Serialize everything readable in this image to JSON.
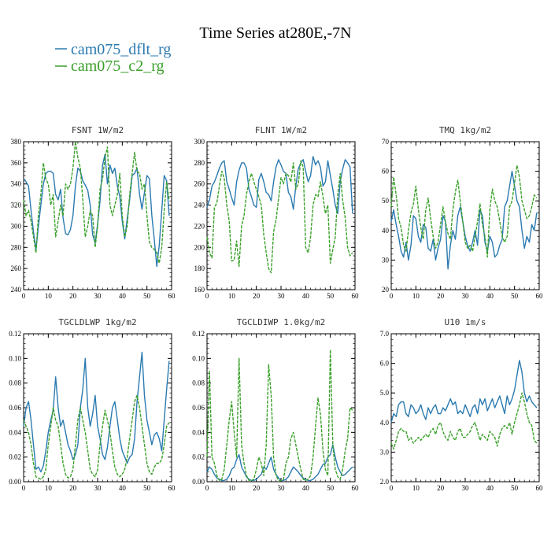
{
  "figure": {
    "title": "Time Series at280E,-7N",
    "legend": [
      {
        "label": "cam075_dflt_rg",
        "color": "#2a7ab0"
      },
      {
        "label": "cam075_c2_rg",
        "color": "#3aa02a"
      }
    ]
  },
  "chart_data": [
    {
      "type": "line",
      "title": "FSNT   1W/m2",
      "xlim": [
        0,
        60
      ],
      "ylim": [
        240,
        380
      ],
      "xticks": [
        0,
        10,
        20,
        30,
        40,
        50,
        60
      ],
      "yticks": [
        240,
        260,
        280,
        300,
        320,
        340,
        360,
        380
      ],
      "xtick_labels": [
        "0",
        "10",
        "20",
        "30",
        "40",
        "50",
        "60"
      ],
      "ytick_labels": [
        "240",
        "260",
        "280",
        "300",
        "320",
        "340",
        "360",
        "380"
      ],
      "series": [
        {
          "name": "cam075_dflt_rg",
          "color": "#2a7ab0",
          "values": [
            345,
            342,
            338,
            315,
            295,
            278,
            300,
            320,
            340,
            350,
            352,
            352,
            350,
            330,
            325,
            335,
            308,
            293,
            292,
            297,
            310,
            338,
            355,
            352,
            343,
            339,
            334,
            320,
            292,
            284,
            302,
            324,
            358,
            368,
            340,
            358,
            350,
            355,
            338,
            328,
            305,
            288,
            307,
            325,
            348,
            350,
            355,
            330,
            316,
            332,
            348,
            345,
            310,
            287,
            262,
            282,
            315,
            348,
            343,
            310
          ]
        },
        {
          "name": "cam075_c2_rg",
          "color": "#3aa02a",
          "values": [
            325,
            310,
            315,
            305,
            290,
            275,
            310,
            330,
            360,
            345,
            340,
            320,
            330,
            290,
            305,
            320,
            310,
            340,
            335,
            340,
            355,
            380,
            365,
            355,
            325,
            290,
            300,
            315,
            310,
            280,
            300,
            335,
            345,
            365,
            375,
            320,
            310,
            320,
            330,
            350,
            310,
            290,
            300,
            330,
            350,
            370,
            352,
            350,
            335,
            340,
            310,
            285,
            280,
            278,
            275,
            265,
            280,
            315,
            342,
            325
          ]
        }
      ]
    },
    {
      "type": "line",
      "title": "FLNT   1W/m2",
      "xlim": [
        0,
        60
      ],
      "ylim": [
        160,
        300
      ],
      "xticks": [
        0,
        10,
        20,
        30,
        40,
        50,
        60
      ],
      "yticks": [
        160,
        180,
        200,
        220,
        240,
        260,
        280,
        300
      ],
      "xtick_labels": [
        "0",
        "10",
        "20",
        "30",
        "40",
        "50",
        "60"
      ],
      "ytick_labels": [
        "160",
        "180",
        "200",
        "220",
        "240",
        "260",
        "280",
        "300"
      ],
      "series": [
        {
          "name": "cam075_dflt_rg",
          "color": "#2a7ab0",
          "values": [
            238,
            245,
            258,
            262,
            268,
            275,
            280,
            282,
            262,
            255,
            247,
            240,
            262,
            273,
            280,
            280,
            275,
            255,
            248,
            240,
            238,
            264,
            270,
            262,
            252,
            250,
            244,
            262,
            276,
            283,
            278,
            272,
            270,
            252,
            248,
            236,
            258,
            274,
            280,
            283,
            272,
            262,
            268,
            286,
            278,
            282,
            276,
            258,
            262,
            282,
            268,
            255,
            240,
            232,
            262,
            274,
            283,
            280,
            276,
            232
          ]
        },
        {
          "name": "cam075_c2_rg",
          "color": "#3aa02a",
          "values": [
            210,
            195,
            190,
            238,
            242,
            258,
            272,
            265,
            240,
            225,
            187,
            188,
            206,
            182,
            220,
            230,
            250,
            262,
            270,
            262,
            255,
            248,
            240,
            212,
            195,
            180,
            176,
            215,
            226,
            246,
            266,
            260,
            270,
            268,
            262,
            280,
            255,
            260,
            282,
            276,
            200,
            195,
            210,
            240,
            250,
            248,
            262,
            248,
            232,
            240,
            185,
            198,
            210,
            250,
            270,
            245,
            228,
            200,
            192,
            195
          ]
        }
      ]
    },
    {
      "type": "line",
      "title": "TMQ   1kg/m2",
      "xlim": [
        0,
        60
      ],
      "ylim": [
        20,
        70
      ],
      "xticks": [
        0,
        10,
        20,
        30,
        40,
        50,
        60
      ],
      "yticks": [
        20,
        30,
        40,
        50,
        60,
        70
      ],
      "xtick_labels": [
        "0",
        "10",
        "20",
        "30",
        "40",
        "50",
        "60"
      ],
      "ytick_labels": [
        "20",
        "30",
        "40",
        "50",
        "60",
        "70"
      ],
      "series": [
        {
          "name": "cam075_dflt_rg",
          "color": "#2a7ab0",
          "values": [
            43,
            47,
            42,
            38,
            33,
            31,
            36,
            30,
            35,
            45,
            44,
            38,
            36,
            42,
            41,
            34,
            33,
            37,
            30,
            34,
            37,
            45,
            43,
            27,
            35,
            40,
            37,
            45,
            48,
            43,
            38,
            35,
            33,
            36,
            40,
            35,
            47,
            45,
            36,
            33,
            38,
            36,
            31,
            32,
            35,
            37,
            48,
            50,
            55,
            60,
            55,
            50,
            48,
            40,
            34,
            38,
            36,
            42,
            40,
            46
          ]
        },
        {
          "name": "cam075_c2_rg",
          "color": "#3aa02a",
          "values": [
            48,
            58,
            52,
            44,
            41,
            35,
            33,
            40,
            46,
            49,
            55,
            47,
            41,
            37,
            47,
            51,
            44,
            38,
            34,
            36,
            42,
            48,
            43,
            39,
            37,
            47,
            53,
            57,
            50,
            43,
            36,
            34,
            35,
            33,
            38,
            43,
            49,
            42,
            38,
            31,
            47,
            54,
            50,
            48,
            43,
            38,
            36,
            38,
            48,
            50,
            56,
            62,
            58,
            50,
            47,
            44,
            45,
            48,
            52,
            51
          ]
        }
      ]
    },
    {
      "type": "line",
      "title": "TGCLDLWP   1kg/m2",
      "xlim": [
        0,
        60
      ],
      "ylim": [
        0,
        0.12
      ],
      "xticks": [
        0,
        10,
        20,
        30,
        40,
        50,
        60
      ],
      "yticks": [
        0,
        0.02,
        0.04,
        0.06,
        0.08,
        0.1,
        0.12
      ],
      "xtick_labels": [
        "0",
        "10",
        "20",
        "30",
        "40",
        "50",
        "60"
      ],
      "ytick_labels": [
        "0.00",
        "0.02",
        "0.04",
        "0.06",
        "0.08",
        "0.10",
        "0.12"
      ],
      "series": [
        {
          "name": "cam075_dflt_rg",
          "color": "#2a7ab0",
          "values": [
            0.045,
            0.06,
            0.065,
            0.05,
            0.03,
            0.01,
            0.012,
            0.008,
            0.013,
            0.025,
            0.04,
            0.05,
            0.058,
            0.085,
            0.06,
            0.045,
            0.05,
            0.04,
            0.03,
            0.025,
            0.018,
            0.022,
            0.03,
            0.06,
            0.075,
            0.1,
            0.06,
            0.045,
            0.055,
            0.07,
            0.045,
            0.035,
            0.022,
            0.018,
            0.028,
            0.045,
            0.06,
            0.065,
            0.05,
            0.035,
            0.025,
            0.02,
            0.015,
            0.02,
            0.022,
            0.035,
            0.065,
            0.085,
            0.105,
            0.07,
            0.05,
            0.04,
            0.03,
            0.038,
            0.04,
            0.035,
            0.025,
            0.05,
            0.075,
            0.098
          ]
        },
        {
          "name": "cam075_c2_rg",
          "color": "#3aa02a",
          "values": [
            0.05,
            0.045,
            0.04,
            0.03,
            0.015,
            0.004,
            0.003,
            0.002,
            0.004,
            0.01,
            0.03,
            0.045,
            0.06,
            0.05,
            0.045,
            0.03,
            0.015,
            0.006,
            0.003,
            0.004,
            0.01,
            0.03,
            0.05,
            0.06,
            0.05,
            0.04,
            0.025,
            0.01,
            0.006,
            0.004,
            0.01,
            0.03,
            0.045,
            0.058,
            0.05,
            0.04,
            0.025,
            0.012,
            0.006,
            0.004,
            0.006,
            0.01,
            0.02,
            0.035,
            0.05,
            0.065,
            0.07,
            0.06,
            0.045,
            0.03,
            0.015,
            0.008,
            0.006,
            0.012,
            0.015,
            0.015,
            0.018,
            0.03,
            0.045,
            0.048
          ]
        }
      ]
    },
    {
      "type": "line",
      "title": "TGCLDIWP   1.0kg/m2",
      "xlim": [
        0,
        60
      ],
      "ylim": [
        0,
        0.12
      ],
      "xticks": [
        0,
        10,
        20,
        30,
        40,
        50,
        60
      ],
      "yticks": [
        0,
        0.02,
        0.04,
        0.06,
        0.08,
        0.1,
        0.12
      ],
      "xtick_labels": [
        "0",
        "10",
        "20",
        "30",
        "40",
        "50",
        "60"
      ],
      "ytick_labels": [
        "0.00",
        "0.02",
        "0.04",
        "0.06",
        "0.08",
        "0.10",
        "0.12"
      ],
      "series": [
        {
          "name": "cam075_dflt_rg",
          "color": "#2a7ab0",
          "values": [
            0.008,
            0.012,
            0.01,
            0.006,
            0.003,
            0.002,
            0.001,
            0.001,
            0.002,
            0.005,
            0.01,
            0.012,
            0.018,
            0.022,
            0.012,
            0.008,
            0.004,
            0.002,
            0.001,
            0.001,
            0.002,
            0.004,
            0.006,
            0.012,
            0.01,
            0.015,
            0.02,
            0.01,
            0.006,
            0.003,
            0.001,
            0.001,
            0.002,
            0.004,
            0.008,
            0.012,
            0.01,
            0.008,
            0.005,
            0.003,
            0.002,
            0.001,
            0.001,
            0.002,
            0.004,
            0.006,
            0.01,
            0.014,
            0.015,
            0.02,
            0.022,
            0.03,
            0.02,
            0.012,
            0.008,
            0.005,
            0.006,
            0.008,
            0.01,
            0.012
          ]
        },
        {
          "name": "cam075_c2_rg",
          "color": "#3aa02a",
          "values": [
            0.02,
            0.09,
            0.02,
            0.015,
            0.005,
            0.001,
            0.002,
            0.01,
            0.03,
            0.05,
            0.065,
            0.04,
            0.02,
            0.1,
            0.03,
            0.015,
            0.005,
            0.001,
            0.001,
            0.002,
            0.01,
            0.02,
            0.015,
            0.005,
            0.03,
            0.095,
            0.07,
            0.02,
            0.005,
            0.001,
            0.001,
            0.002,
            0.015,
            0.02,
            0.035,
            0.04,
            0.03,
            0.02,
            0.01,
            0.002,
            0.001,
            0.002,
            0.005,
            0.02,
            0.045,
            0.068,
            0.055,
            0.025,
            0.01,
            0.005,
            0.107,
            0.03,
            0.01,
            0.004,
            0.002,
            0.01,
            0.025,
            0.035,
            0.06,
            0.058
          ]
        }
      ]
    },
    {
      "type": "line",
      "title": "U10   1m/s",
      "xlim": [
        0,
        60
      ],
      "ylim": [
        2,
        7
      ],
      "xticks": [
        0,
        10,
        20,
        30,
        40,
        50,
        60
      ],
      "yticks": [
        2,
        3,
        4,
        5,
        6,
        7
      ],
      "xtick_labels": [
        "0",
        "10",
        "20",
        "30",
        "40",
        "50",
        "60"
      ],
      "ytick_labels": [
        "2.0",
        "3.0",
        "4.0",
        "5.0",
        "6.0",
        "7.0"
      ],
      "series": [
        {
          "name": "cam075_dflt_rg",
          "color": "#2a7ab0",
          "values": [
            4.0,
            4.3,
            4.2,
            4.6,
            4.7,
            4.7,
            4.3,
            4.2,
            4.6,
            4.5,
            4.3,
            4.4,
            4.6,
            4.3,
            4.1,
            4.5,
            4.3,
            4.5,
            4.6,
            4.3,
            4.3,
            4.5,
            4.4,
            4.6,
            4.8,
            4.6,
            4.7,
            4.3,
            4.4,
            4.3,
            4.6,
            4.4,
            4.2,
            4.5,
            4.6,
            4.3,
            4.8,
            4.6,
            4.8,
            4.4,
            4.6,
            4.8,
            4.5,
            4.7,
            4.9,
            4.6,
            4.3,
            4.9,
            4.6,
            4.8,
            5.1,
            5.6,
            6.1,
            5.7,
            5.0,
            4.7,
            4.9,
            4.7,
            4.6,
            4.5
          ]
        },
        {
          "name": "cam075_c2_rg",
          "color": "#3aa02a",
          "values": [
            3.3,
            3.1,
            3.4,
            3.7,
            3.8,
            3.7,
            3.7,
            3.4,
            3.5,
            3.3,
            3.4,
            3.5,
            3.4,
            3.5,
            3.6,
            3.5,
            3.7,
            3.8,
            3.6,
            3.9,
            4.0,
            3.7,
            3.5,
            3.4,
            3.7,
            3.5,
            3.4,
            3.7,
            3.8,
            3.5,
            3.5,
            3.6,
            3.7,
            3.9,
            4.0,
            3.7,
            3.4,
            3.6,
            3.5,
            3.4,
            3.7,
            3.6,
            3.5,
            3.2,
            3.6,
            3.8,
            3.9,
            3.8,
            4.0,
            3.6,
            4.0,
            4.3,
            4.6,
            5.0,
            4.7,
            4.3,
            4.0,
            3.9,
            3.4,
            3.3
          ]
        }
      ]
    }
  ]
}
